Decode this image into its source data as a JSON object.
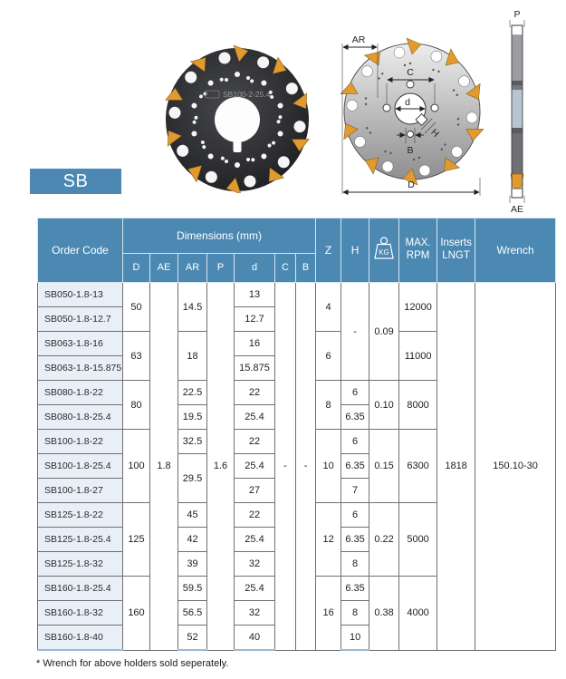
{
  "series_badge": "SB",
  "footnote": "* Wrench for above holders sold seperately.",
  "product_photo": {
    "marking": "SB100-2-25.4"
  },
  "drawing": {
    "labels": {
      "ar": "AR",
      "c": "C",
      "d": "d",
      "b": "B",
      "h": "H",
      "diameter": "D",
      "p": "P",
      "ae": "AE"
    }
  },
  "colors": {
    "header_blue": "#4b89b3",
    "order_code_bg": "#e9eff7",
    "insert_orange": "#e09a2f",
    "table_bottom_edge": "#9db9d2"
  },
  "table": {
    "header": {
      "order_code": "Order Code",
      "dimensions_group": "Dimensions (mm)",
      "dims": [
        "D",
        "AE",
        "AR",
        "P",
        "d",
        "C",
        "B"
      ],
      "z": "Z",
      "h": "H",
      "kg_unit_label": "KG",
      "max_rpm": "MAX. RPM",
      "inserts_lngt": "Inserts LNGT",
      "wrench": "Wrench"
    },
    "rows": [
      [
        {
          "t": "SB050-1.8-13",
          "oc": 1
        },
        {
          "t": "50",
          "rs": 2
        },
        {
          "t": "1.8",
          "rs": 15
        },
        {
          "t": "14.5",
          "rs": 2
        },
        {
          "t": "1.6",
          "rs": 15
        },
        {
          "t": "13"
        },
        {
          "t": "-",
          "rs": 15
        },
        {
          "t": "-",
          "rs": 15
        },
        {
          "t": "4",
          "rs": 2
        },
        {
          "t": "-",
          "rs": 4
        },
        {
          "t": "0.09",
          "rs": 4
        },
        {
          "t": "12000",
          "rs": 2
        },
        {
          "t": "1818",
          "rs": 15
        },
        {
          "t": "150.10-30",
          "rs": 15
        }
      ],
      [
        {
          "t": "SB050-1.8-12.7",
          "oc": 1
        },
        {
          "t": "12.7"
        }
      ],
      [
        {
          "t": "SB063-1.8-16",
          "oc": 1
        },
        {
          "t": "63",
          "rs": 2
        },
        {
          "t": "18",
          "rs": 2
        },
        {
          "t": "16"
        },
        {
          "t": "6",
          "rs": 2
        },
        {
          "t": "11000",
          "rs": 2
        }
      ],
      [
        {
          "t": "SB063-1.8-15.875",
          "oc": 1
        },
        {
          "t": "15.875"
        }
      ],
      [
        {
          "t": "SB080-1.8-22",
          "oc": 1
        },
        {
          "t": "80",
          "rs": 2
        },
        {
          "t": "22.5"
        },
        {
          "t": "22"
        },
        {
          "t": "8",
          "rs": 2
        },
        {
          "t": "6"
        },
        {
          "t": "0.10",
          "rs": 2
        },
        {
          "t": "8000",
          "rs": 2
        }
      ],
      [
        {
          "t": "SB080-1.8-25.4",
          "oc": 1
        },
        {
          "t": "19.5"
        },
        {
          "t": "25.4"
        },
        {
          "t": "6.35"
        }
      ],
      [
        {
          "t": "SB100-1.8-22",
          "oc": 1
        },
        {
          "t": "100",
          "rs": 3
        },
        {
          "t": "32.5"
        },
        {
          "t": "22"
        },
        {
          "t": "10",
          "rs": 3
        },
        {
          "t": "6"
        },
        {
          "t": "0.15",
          "rs": 3
        },
        {
          "t": "6300",
          "rs": 3
        }
      ],
      [
        {
          "t": "SB100-1.8-25.4",
          "oc": 1
        },
        {
          "t": "29.5",
          "rs": 2
        },
        {
          "t": "25.4"
        },
        {
          "t": "6.35"
        }
      ],
      [
        {
          "t": "SB100-1.8-27",
          "oc": 1
        },
        {
          "t": "27"
        },
        {
          "t": "7"
        }
      ],
      [
        {
          "t": "SB125-1.8-22",
          "oc": 1
        },
        {
          "t": "125",
          "rs": 3
        },
        {
          "t": "45"
        },
        {
          "t": "22"
        },
        {
          "t": "12",
          "rs": 3
        },
        {
          "t": "6"
        },
        {
          "t": "0.22",
          "rs": 3
        },
        {
          "t": "5000",
          "rs": 3
        }
      ],
      [
        {
          "t": "SB125-1.8-25.4",
          "oc": 1
        },
        {
          "t": "42"
        },
        {
          "t": "25.4"
        },
        {
          "t": "6.35"
        }
      ],
      [
        {
          "t": "SB125-1.8-32",
          "oc": 1
        },
        {
          "t": "39"
        },
        {
          "t": "32"
        },
        {
          "t": "8"
        }
      ],
      [
        {
          "t": "SB160-1.8-25.4",
          "oc": 1
        },
        {
          "t": "160",
          "rs": 3
        },
        {
          "t": "59.5"
        },
        {
          "t": "25.4"
        },
        {
          "t": "16",
          "rs": 3
        },
        {
          "t": "6.35"
        },
        {
          "t": "0.38",
          "rs": 3
        },
        {
          "t": "4000",
          "rs": 3
        }
      ],
      [
        {
          "t": "SB160-1.8-32",
          "oc": 1
        },
        {
          "t": "56.5"
        },
        {
          "t": "32"
        },
        {
          "t": "8"
        }
      ],
      [
        {
          "t": "SB160-1.8-40",
          "oc": 1
        },
        {
          "t": "52"
        },
        {
          "t": "40"
        },
        {
          "t": "10"
        }
      ]
    ]
  }
}
